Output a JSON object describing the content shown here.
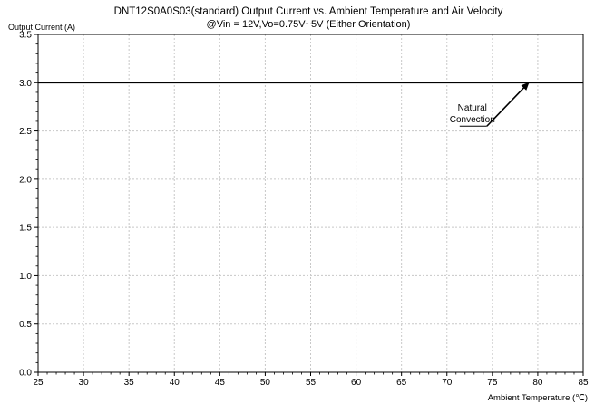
{
  "chart_data": {
    "type": "line",
    "title_line1": "DNT12S0A0S03(standard)  Output Current vs. Ambient Temperature and Air Velocity",
    "title_line2": "@Vin = 12V,Vo=0.75V~5V  (Either Orientation)",
    "ylabel": "Output Current (A)",
    "xlabel": "Ambient Temperature (℃)",
    "xlim": [
      25,
      85
    ],
    "ylim": [
      0,
      3.5
    ],
    "x_ticks": [
      "25",
      "30",
      "35",
      "40",
      "45",
      "50",
      "55",
      "60",
      "65",
      "70",
      "75",
      "80",
      "85"
    ],
    "y_ticks": [
      "0.0",
      "0.5",
      "1.0",
      "1.5",
      "2.0",
      "2.5",
      "3.0",
      "3.5"
    ],
    "grid": true,
    "series": [
      {
        "name": "Natural Convection",
        "x": [
          25,
          85
        ],
        "y": [
          3.0,
          3.0
        ],
        "color": "#000000"
      }
    ],
    "annotation": {
      "lines": [
        "Natural",
        "Convection"
      ],
      "text_at": [
        72.8,
        2.6
      ],
      "underline_from": [
        71.4,
        2.55
      ],
      "elbow": [
        74.4,
        2.55
      ],
      "arrow_to": [
        79.0,
        3.0
      ]
    }
  }
}
